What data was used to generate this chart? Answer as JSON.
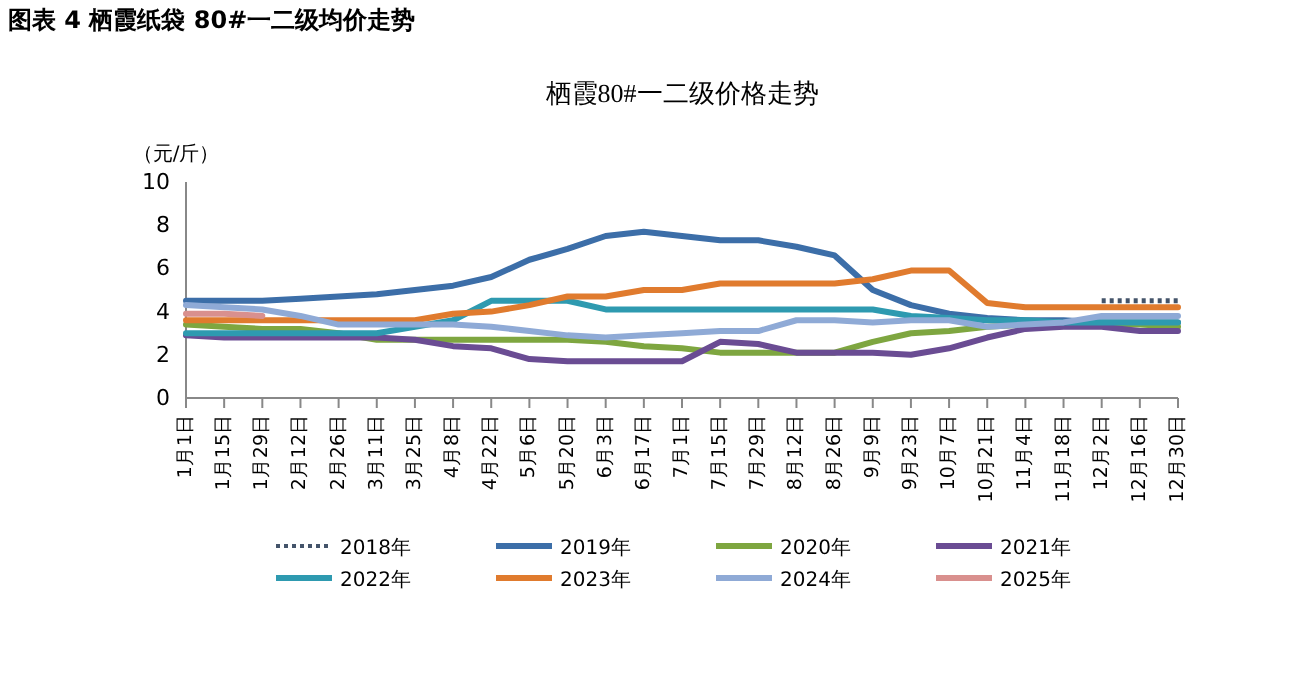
{
  "chart_data": {
    "type": "line",
    "title": "图表 4 栖霞纸袋 80#一二级均价走势",
    "subtitle": "栖霞80#一二级价格走势",
    "ylabel": "（元/斤）",
    "categories": [
      "1月1日",
      "1月15日",
      "1月29日",
      "2月12日",
      "2月26日",
      "3月11日",
      "3月25日",
      "4月8日",
      "4月22日",
      "5月6日",
      "5月20日",
      "6月3日",
      "6月17日",
      "7月1日",
      "7月15日",
      "7月29日",
      "8月12日",
      "8月26日",
      "9月9日",
      "9月23日",
      "10月7日",
      "10月21日",
      "11月4日",
      "11月18日",
      "12月2日",
      "12月16日",
      "12月30日"
    ],
    "ylim": [
      0,
      10
    ],
    "yticks": [
      0,
      2,
      4,
      6,
      8,
      10
    ],
    "grid": false,
    "legend": "bottom",
    "series": [
      {
        "name": "2018年",
        "color": "#44546a",
        "line_style": "dotted",
        "values": [
          null,
          null,
          null,
          null,
          null,
          null,
          null,
          null,
          null,
          null,
          null,
          null,
          null,
          null,
          null,
          null,
          null,
          null,
          null,
          null,
          null,
          null,
          null,
          null,
          4.5,
          4.5,
          4.5
        ]
      },
      {
        "name": "2019年",
        "color": "#3c6ea8",
        "values": [
          4.5,
          4.5,
          4.5,
          4.6,
          4.7,
          4.8,
          5.0,
          5.2,
          5.6,
          6.4,
          6.9,
          7.5,
          7.7,
          7.5,
          7.3,
          7.3,
          7.0,
          6.6,
          5.0,
          4.3,
          3.9,
          3.7,
          3.6,
          3.6,
          3.5,
          3.5,
          3.5
        ]
      },
      {
        "name": "2020年",
        "color": "#7ea640",
        "values": [
          3.4,
          3.3,
          3.2,
          3.2,
          3.0,
          2.7,
          2.7,
          2.7,
          2.7,
          2.7,
          2.7,
          2.6,
          2.4,
          2.3,
          2.1,
          2.1,
          2.1,
          2.1,
          2.6,
          3.0,
          3.1,
          3.3,
          3.4,
          3.4,
          3.4,
          3.4,
          3.3
        ]
      },
      {
        "name": "2021年",
        "color": "#6a4c93",
        "values": [
          2.9,
          2.8,
          2.8,
          2.8,
          2.8,
          2.8,
          2.7,
          2.4,
          2.3,
          1.8,
          1.7,
          1.7,
          1.7,
          1.7,
          2.6,
          2.5,
          2.1,
          2.1,
          2.1,
          2.0,
          2.3,
          2.8,
          3.2,
          3.3,
          3.3,
          3.1,
          3.1
        ]
      },
      {
        "name": "2022年",
        "color": "#2e9ab0",
        "values": [
          3.0,
          3.0,
          3.0,
          3.0,
          3.0,
          3.0,
          3.3,
          3.6,
          4.5,
          4.5,
          4.5,
          4.1,
          4.1,
          4.1,
          4.1,
          4.1,
          4.1,
          4.1,
          4.1,
          3.8,
          3.7,
          3.6,
          3.6,
          3.5,
          3.5,
          3.5,
          3.5
        ]
      },
      {
        "name": "2023年",
        "color": "#e07b2e",
        "values": [
          3.6,
          3.6,
          3.6,
          3.6,
          3.6,
          3.6,
          3.6,
          3.9,
          4.0,
          4.3,
          4.7,
          4.7,
          5.0,
          5.0,
          5.3,
          5.3,
          5.3,
          5.3,
          5.5,
          5.9,
          5.9,
          4.4,
          4.2,
          4.2,
          4.2,
          4.2,
          4.2
        ]
      },
      {
        "name": "2024年",
        "color": "#8faad6",
        "values": [
          4.3,
          4.2,
          4.1,
          3.8,
          3.4,
          3.4,
          3.4,
          3.4,
          3.3,
          3.1,
          2.9,
          2.8,
          2.9,
          3.0,
          3.1,
          3.1,
          3.6,
          3.6,
          3.5,
          3.6,
          3.6,
          3.3,
          3.4,
          3.5,
          3.8,
          3.8,
          3.8
        ]
      },
      {
        "name": "2025年",
        "color": "#d9908e",
        "values": [
          3.9,
          3.9,
          3.8,
          null,
          null,
          null,
          null,
          null,
          null,
          null,
          null,
          null,
          null,
          null,
          null,
          null,
          null,
          null,
          null,
          null,
          null,
          null,
          null,
          null,
          null,
          null,
          null
        ]
      }
    ]
  }
}
